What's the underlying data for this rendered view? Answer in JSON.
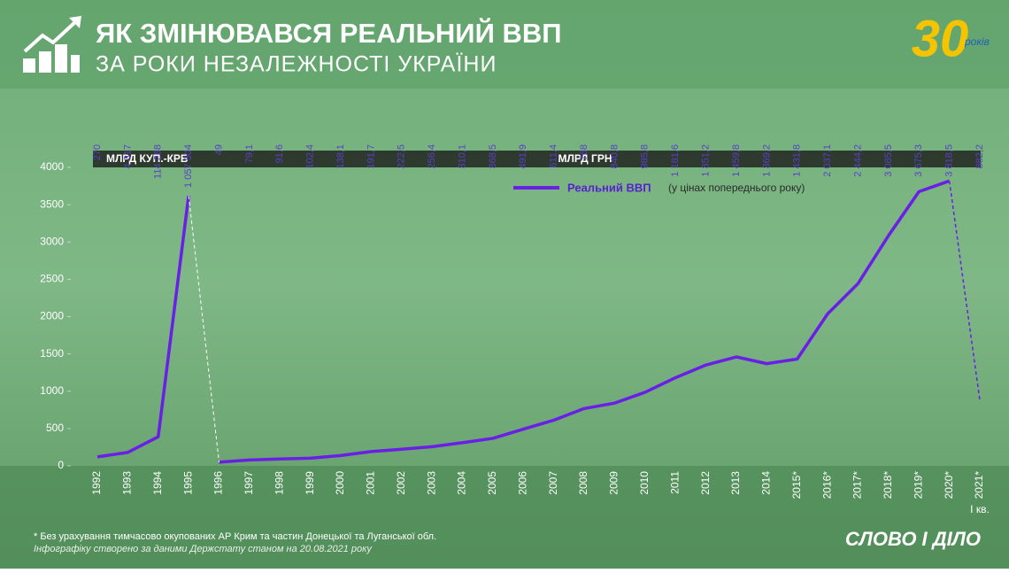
{
  "chart_data": {
    "type": "line",
    "title": "ЯК ЗМІНЮВАВСЯ РЕАЛЬНИЙ ВВП",
    "subtitle": "ЗА РОКИ НЕЗАЛЕЖНОСТІ УКРАЇНИ",
    "categories": [
      "1992",
      "1993",
      "1994",
      "1995",
      "1996",
      "1997",
      "1998",
      "1999",
      "2000",
      "2001",
      "2002",
      "2003",
      "2004",
      "2005",
      "2006",
      "2007",
      "2008",
      "2009",
      "2010",
      "2011",
      "2012",
      "2013",
      "2014",
      "2015*",
      "2016*",
      "2017*",
      "2018*",
      "2019*",
      "2020*",
      "2021*"
    ],
    "category_note": "І кв.",
    "series": [
      {
        "name": "Реальний ВВП",
        "name_note": "(у цінах попереднього року)",
        "color": "#6a1fe6",
        "values": [
          120,
          180,
          390,
          3620,
          49,
          79.1,
          91.6,
          102.4,
          138.1,
          191.7,
          222.5,
          256.4,
          310.1,
          368.5,
          491.9,
          611.4,
          768,
          840.8,
          985.8,
          1181.6,
          1351.2,
          1459.8,
          1369.2,
          1431.8,
          2037.1,
          2444.2,
          3085.5,
          3675.3,
          3818.5,
          882.2
        ]
      }
    ],
    "top_labels": [
      "270",
      "4 317",
      "114 268",
      "1 057 504",
      "49",
      "79,1",
      "91,6",
      "102,4",
      "138,1",
      "191,7",
      "222,5",
      "256,4",
      "310,1",
      "368,5",
      "491,9",
      "611,4",
      "768",
      "840,8",
      "985,8",
      "1 181,6",
      "1 351,2",
      "1 459,8",
      "1 369,2",
      "1 431,8",
      "2 037,1",
      "2 444,2",
      "3 085,5",
      "3 675,3",
      "3 818,5",
      "882,2"
    ],
    "units": [
      "МЛРД КУП.-КРБ",
      "МЛРД ГРН"
    ],
    "ylim": [
      0,
      4000
    ],
    "yticks": [
      0,
      500,
      1000,
      1500,
      2000,
      2500,
      3000,
      3500,
      4000
    ],
    "footnote": "* Без урахування тимчасово окупованих АР Крим та частин Донецької та Луганської обл.",
    "source": "Інфографіку створено за даними Держстату станом на 20.08.2021 року",
    "logo": "СЛОВО І ДІЛО",
    "badge": "30",
    "badge_note": "років"
  }
}
